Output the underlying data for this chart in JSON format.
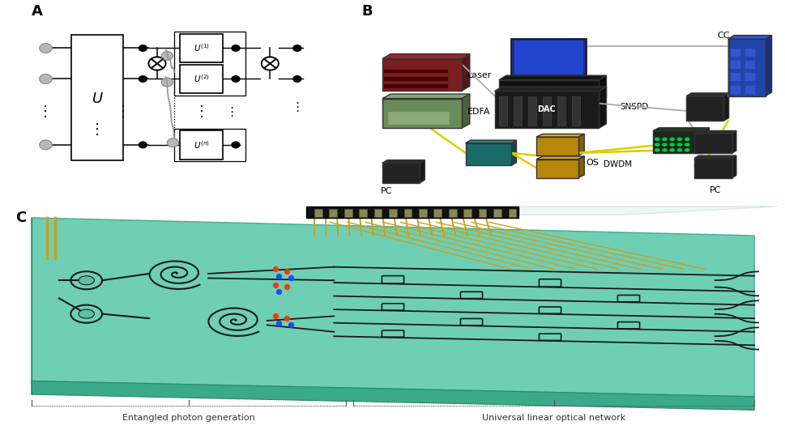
{
  "bg": "#ffffff",
  "lbl_A": "A",
  "lbl_B": "B",
  "lbl_C": "C",
  "lbl_fontsize": 13,
  "chip_top_color": "#6ecfb5",
  "chip_side_color": "#4aaa90",
  "chip_bottom_color": "#3a9980",
  "wg_color": "#1a1a1a",
  "gold_color": "#c8a020",
  "connector_color": "#111111",
  "bottom_left_label": "Entangled photon generation",
  "bottom_right_label": "Universal linear optical network"
}
